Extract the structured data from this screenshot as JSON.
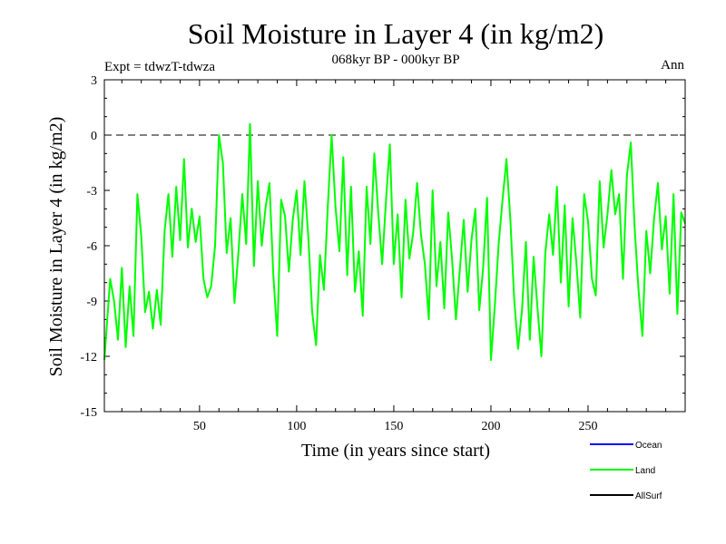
{
  "chart_data": {
    "type": "line",
    "title": "Soil Moisture in Layer 4 (in kg/m2)",
    "subtitle": "068kyr BP - 000kyr BP",
    "experiment_label": "Expt = tdwzT-tdwza",
    "season_label": "Ann",
    "xlabel": "Time (in years since start)",
    "ylabel": "Soil Moisture in Layer 4 (in kg/m2)",
    "xlim": [
      1,
      300
    ],
    "ylim": [
      -15,
      3
    ],
    "x_ticks": [
      50,
      100,
      150,
      200,
      250
    ],
    "y_ticks": [
      3,
      0,
      -3,
      -6,
      -9,
      -12,
      -15
    ],
    "reference_line": {
      "y": 0,
      "style": "dashed"
    },
    "legend_position": "bottom-right",
    "legend": [
      {
        "name": "Ocean",
        "color": "#0000ff"
      },
      {
        "name": "Land",
        "color": "#00ff00"
      },
      {
        "name": "AllSurf",
        "color": "#000000"
      }
    ],
    "series": [
      {
        "name": "Land",
        "color": "#00ff00",
        "x": [
          1,
          4,
          6,
          8,
          10,
          12,
          14,
          16,
          18,
          20,
          22,
          24,
          26,
          28,
          30,
          32,
          34,
          36,
          38,
          40,
          42,
          44,
          46,
          48,
          50,
          52,
          54,
          56,
          58,
          60,
          62,
          64,
          66,
          68,
          70,
          72,
          74,
          76,
          78,
          80,
          82,
          84,
          86,
          88,
          90,
          92,
          94,
          96,
          98,
          100,
          102,
          104,
          106,
          108,
          110,
          112,
          114,
          116,
          118,
          120,
          122,
          124,
          126,
          128,
          130,
          132,
          134,
          136,
          138,
          140,
          142,
          144,
          146,
          148,
          150,
          152,
          154,
          156,
          158,
          160,
          162,
          164,
          166,
          168,
          170,
          172,
          174,
          176,
          178,
          180,
          182,
          184,
          186,
          188,
          190,
          192,
          194,
          196,
          198,
          200,
          202,
          204,
          206,
          208,
          210,
          212,
          214,
          216,
          218,
          220,
          222,
          224,
          226,
          228,
          230,
          232,
          234,
          236,
          238,
          240,
          242,
          244,
          246,
          248,
          250,
          252,
          254,
          256,
          258,
          260,
          262,
          264,
          266,
          268,
          270,
          272,
          274,
          276,
          278,
          280,
          282,
          284,
          286,
          288,
          290,
          292,
          294,
          296,
          298,
          300
        ],
        "values": [
          -12.2,
          -7.8,
          -9.0,
          -11.1,
          -7.2,
          -11.5,
          -8.2,
          -10.9,
          -3.2,
          -5.5,
          -9.6,
          -8.5,
          -10.5,
          -8.4,
          -10.3,
          -5.2,
          -3.2,
          -6.6,
          -2.8,
          -5.7,
          -1.3,
          -6.1,
          -4.0,
          -5.8,
          -4.4,
          -7.8,
          -8.8,
          -8.2,
          -6.0,
          0.0,
          -1.5,
          -6.4,
          -4.5,
          -9.1,
          -6.4,
          -3.2,
          -5.9,
          0.6,
          -7.1,
          -2.5,
          -6.0,
          -3.9,
          -2.6,
          -7.6,
          -10.9,
          -3.5,
          -4.4,
          -7.4,
          -4.6,
          -3.0,
          -6.5,
          -2.5,
          -5.5,
          -9.6,
          -11.4,
          -6.5,
          -8.4,
          -3.9,
          0.0,
          -3.9,
          -6.3,
          -1.2,
          -7.6,
          -2.8,
          -8.5,
          -6.3,
          -9.8,
          -2.8,
          -5.9,
          -1.0,
          -4.2,
          -7.0,
          -3.5,
          -0.5,
          -7.0,
          -4.3,
          -8.8,
          -3.5,
          -6.7,
          -5.3,
          -2.6,
          -5.4,
          -7.0,
          -10.0,
          -3.0,
          -8.2,
          -5.8,
          -9.4,
          -4.2,
          -6.7,
          -10.0,
          -7.3,
          -4.6,
          -8.5,
          -5.7,
          -4.0,
          -9.5,
          -7.2,
          -3.4,
          -12.2,
          -9.3,
          -5.9,
          -3.5,
          -1.3,
          -4.6,
          -8.9,
          -11.6,
          -9.5,
          -5.8,
          -11.1,
          -6.6,
          -9.4,
          -12.0,
          -6.4,
          -4.3,
          -6.5,
          -2.8,
          -8.0,
          -3.8,
          -9.3,
          -4.5,
          -6.9,
          -9.9,
          -3.2,
          -4.7,
          -7.8,
          -8.7,
          -2.5,
          -6.1,
          -4.3,
          -1.9,
          -4.3,
          -3.2,
          -7.8,
          -2.2,
          -0.4,
          -5.0,
          -8.4,
          -10.9,
          -5.2,
          -7.5,
          -4.5,
          -2.6,
          -6.2,
          -4.4,
          -8.6,
          -3.2,
          -9.7,
          -4.2,
          -4.8
        ]
      }
    ]
  }
}
